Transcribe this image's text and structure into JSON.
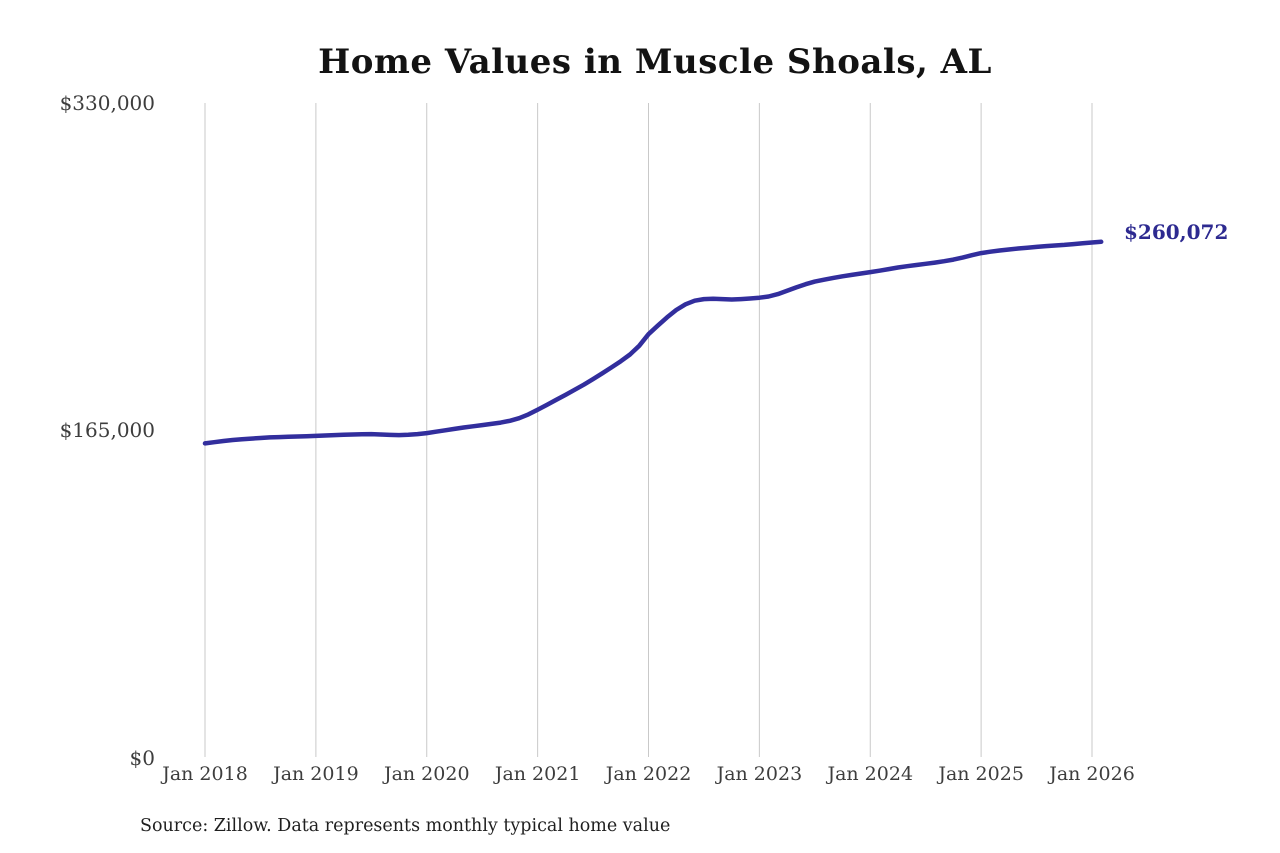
{
  "title": "Home Values in Muscle Shoals, AL",
  "end_label": "$260,072",
  "source_note": "Source: Zillow. Data represents monthly typical home value",
  "colors": {
    "line": "#322e9d",
    "end_label": "#2d2a90",
    "gridline": "#c9c9c9",
    "axis_text": "#3d3d3d",
    "title_text": "#131313",
    "source_text": "#1f1f1f",
    "background": "#ffffff"
  },
  "chart_data": {
    "type": "line",
    "title": "Home Values in Muscle Shoals, AL",
    "xlabel": "",
    "ylabel": "",
    "ylim": [
      0,
      330000
    ],
    "grid": "vertical-only",
    "legend": "none",
    "x_ticks": [
      "Jan 2018",
      "Jan 2019",
      "Jan 2020",
      "Jan 2021",
      "Jan 2022",
      "Jan 2023",
      "Jan 2024",
      "Jan 2025",
      "Jan 2026"
    ],
    "y_ticks": [
      {
        "label": "$330,000",
        "value": 330000
      },
      {
        "label": "$165,000",
        "value": 165000
      },
      {
        "label": "$0",
        "value": 0
      }
    ],
    "series": [
      {
        "name": "Monthly typical home value",
        "x_start": "2018-01",
        "x_freq": "monthly",
        "final_value": 260072,
        "values": [
          158500,
          159100,
          159700,
          160200,
          160600,
          160900,
          161200,
          161500,
          161700,
          161900,
          162000,
          162100,
          162300,
          162500,
          162700,
          162900,
          163000,
          163100,
          163200,
          163000,
          162800,
          162700,
          162900,
          163200,
          163700,
          164400,
          165100,
          165800,
          166500,
          167100,
          167700,
          168300,
          169000,
          169900,
          171200,
          173100,
          175500,
          177900,
          180400,
          182900,
          185500,
          188100,
          190900,
          193800,
          196800,
          199900,
          203300,
          207700,
          213500,
          217800,
          222000,
          225700,
          228600,
          230400,
          231200,
          231400,
          231200,
          231000,
          231200,
          231500,
          231900,
          232500,
          233700,
          235400,
          237100,
          238700,
          240000,
          241000,
          241900,
          242700,
          243400,
          244100,
          244800,
          245500,
          246300,
          247100,
          247800,
          248400,
          249000,
          249600,
          250300,
          251100,
          252100,
          253300,
          254400,
          255100,
          255700,
          256200,
          256700,
          257100,
          257500,
          257900,
          258200,
          258500,
          258900,
          259300,
          259700,
          260072
        ]
      }
    ]
  }
}
